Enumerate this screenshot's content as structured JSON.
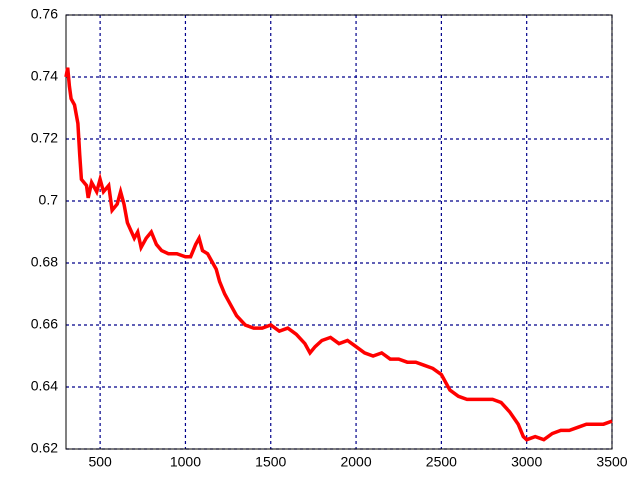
{
  "chart_data": {
    "type": "line",
    "x": [
      300,
      310,
      320,
      330,
      350,
      370,
      380,
      390,
      420,
      430,
      450,
      480,
      500,
      520,
      550,
      570,
      600,
      620,
      640,
      660,
      700,
      720,
      740,
      770,
      800,
      830,
      860,
      900,
      950,
      1000,
      1030,
      1060,
      1080,
      1100,
      1130,
      1150,
      1180,
      1200,
      1230,
      1260,
      1300,
      1350,
      1400,
      1450,
      1500,
      1550,
      1600,
      1650,
      1700,
      1730,
      1760,
      1800,
      1850,
      1900,
      1950,
      2000,
      2050,
      2100,
      2150,
      2200,
      2250,
      2300,
      2350,
      2400,
      2450,
      2500,
      2550,
      2600,
      2650,
      2700,
      2750,
      2800,
      2850,
      2900,
      2950,
      2980,
      3000,
      3050,
      3100,
      3150,
      3200,
      3250,
      3300,
      3350,
      3400,
      3450,
      3500
    ],
    "series": [
      {
        "color": "#ff0000",
        "values": [
          0.74,
          0.743,
          0.737,
          0.733,
          0.731,
          0.725,
          0.715,
          0.707,
          0.705,
          0.701,
          0.706,
          0.703,
          0.707,
          0.703,
          0.705,
          0.697,
          0.699,
          0.703,
          0.699,
          0.693,
          0.688,
          0.69,
          0.685,
          0.688,
          0.69,
          0.686,
          0.684,
          0.683,
          0.683,
          0.682,
          0.682,
          0.686,
          0.688,
          0.684,
          0.683,
          0.681,
          0.678,
          0.674,
          0.67,
          0.667,
          0.663,
          0.66,
          0.659,
          0.659,
          0.66,
          0.658,
          0.659,
          0.657,
          0.654,
          0.651,
          0.653,
          0.655,
          0.656,
          0.654,
          0.655,
          0.653,
          0.651,
          0.65,
          0.651,
          0.649,
          0.649,
          0.648,
          0.648,
          0.647,
          0.646,
          0.644,
          0.639,
          0.637,
          0.636,
          0.636,
          0.636,
          0.636,
          0.635,
          0.632,
          0.628,
          0.624,
          0.623,
          0.624,
          0.623,
          0.625,
          0.626,
          0.626,
          0.627,
          0.628,
          0.628,
          0.628,
          0.629
        ]
      }
    ],
    "xlim": [
      300,
      3500
    ],
    "xticks": [
      500,
      1000,
      1500,
      2000,
      2500,
      3000,
      3500
    ],
    "ylim": [
      0.62,
      0.76
    ],
    "yticks": [
      0.62,
      0.64,
      0.66,
      0.68,
      0.7,
      0.72,
      0.74,
      0.76
    ],
    "grid": true,
    "grid_color": "#00008b"
  }
}
